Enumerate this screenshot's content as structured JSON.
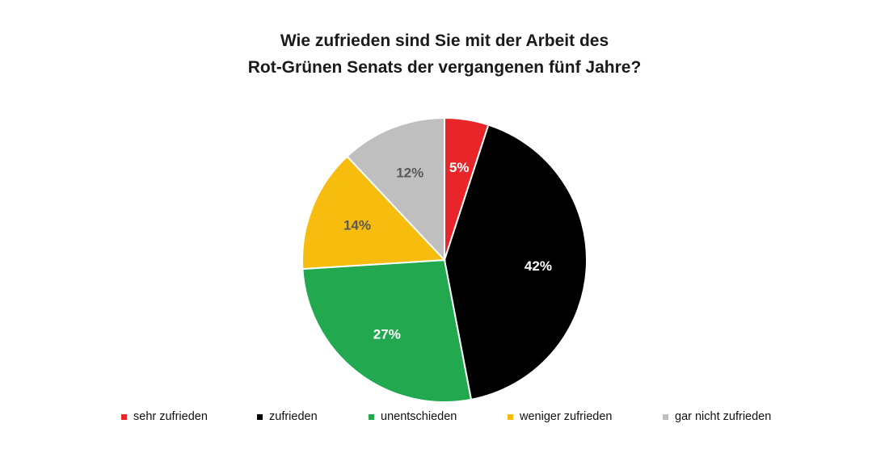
{
  "chart_data": {
    "type": "pie",
    "title_lines": [
      "Wie zufrieden sind Sie mit der Arbeit des",
      "Rot-Grünen Senats der vergangenen fünf Jahre?"
    ],
    "categories": [
      "sehr zufrieden",
      "zufrieden",
      "unentschieden",
      "weniger zufrieden",
      "gar nicht zufrieden"
    ],
    "values": [
      5,
      42,
      27,
      14,
      12
    ],
    "data_labels": [
      "5%",
      "42%",
      "27%",
      "14%",
      "12%"
    ],
    "colors": [
      "#e8262a",
      "#000000",
      "#22a94f",
      "#f6bd0f",
      "#bfbfbf"
    ],
    "label_colors": [
      "#ffffff",
      "#ffffff",
      "#ffffff",
      "#595959",
      "#595959"
    ],
    "start_angle": "12 o'clock",
    "direction": "clockwise",
    "legend_position": "bottom"
  }
}
